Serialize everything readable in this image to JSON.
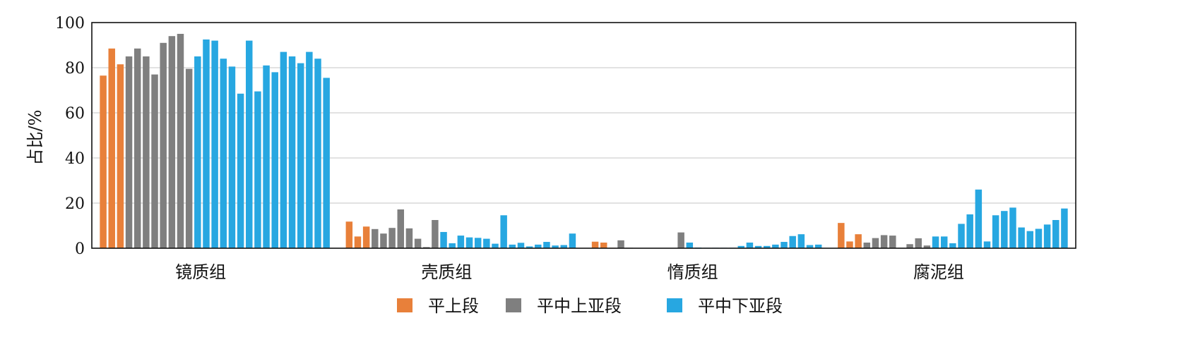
{
  "chart_data": {
    "type": "bar",
    "ylabel": "占比/%",
    "ylim": [
      0,
      100
    ],
    "yticks": [
      0,
      20,
      40,
      60,
      80,
      100
    ],
    "grid": "horizontal",
    "legend_placement": "bottom-center",
    "categories": [
      "镜质组",
      "壳质组",
      "惰质组",
      "腐泥组"
    ],
    "series": [
      {
        "name": "平上段",
        "color": "#E8803A",
        "values": [
          [
            76.5,
            88.5,
            81.5
          ],
          [
            11.8,
            5.2,
            9.6
          ],
          [
            2.9,
            2.5,
            0.2
          ],
          [
            11.2,
            3.0,
            6.2
          ]
        ]
      },
      {
        "name": "平中上亚段",
        "color": "#7F7F7F",
        "values": [
          [
            85,
            88.5,
            85,
            77,
            91,
            94,
            95,
            79.5
          ],
          [
            8.5,
            6.5,
            9,
            17.2,
            8.8,
            4.2,
            0.5,
            12.5
          ],
          [
            3.5,
            0.2,
            0.1,
            0.1,
            0.1,
            0.1,
            0.1,
            7.0
          ],
          [
            2.5,
            4.5,
            5.8,
            5.6,
            0.2,
            1.8,
            4.4,
            1.2
          ]
        ]
      },
      {
        "name": "平中下亚段",
        "color": "#27A7E1",
        "values": [
          [
            85,
            92.5,
            92,
            84,
            80.5,
            68.5,
            92,
            69.5,
            81,
            78,
            87,
            85,
            82,
            87,
            84,
            75.5
          ],
          [
            7.2,
            2.2,
            5.6,
            4.8,
            4.6,
            4.2,
            2.0,
            14.6,
            1.6,
            2.4,
            0.8,
            1.6,
            2.8,
            1.2,
            1.4,
            6.5
          ],
          [
            2.5,
            0.3,
            0.2,
            0.2,
            0.2,
            0.2,
            1.0,
            2.5,
            1.0,
            1.0,
            1.6,
            2.8,
            5.4,
            6.2,
            1.4,
            1.6
          ],
          [
            5.2,
            5.2,
            2.2,
            10.8,
            15.0,
            26.0,
            3.0,
            14.6,
            16.5,
            18.0,
            9.2,
            7.6,
            8.6,
            10.5,
            12.5,
            17.6
          ]
        ]
      }
    ]
  }
}
